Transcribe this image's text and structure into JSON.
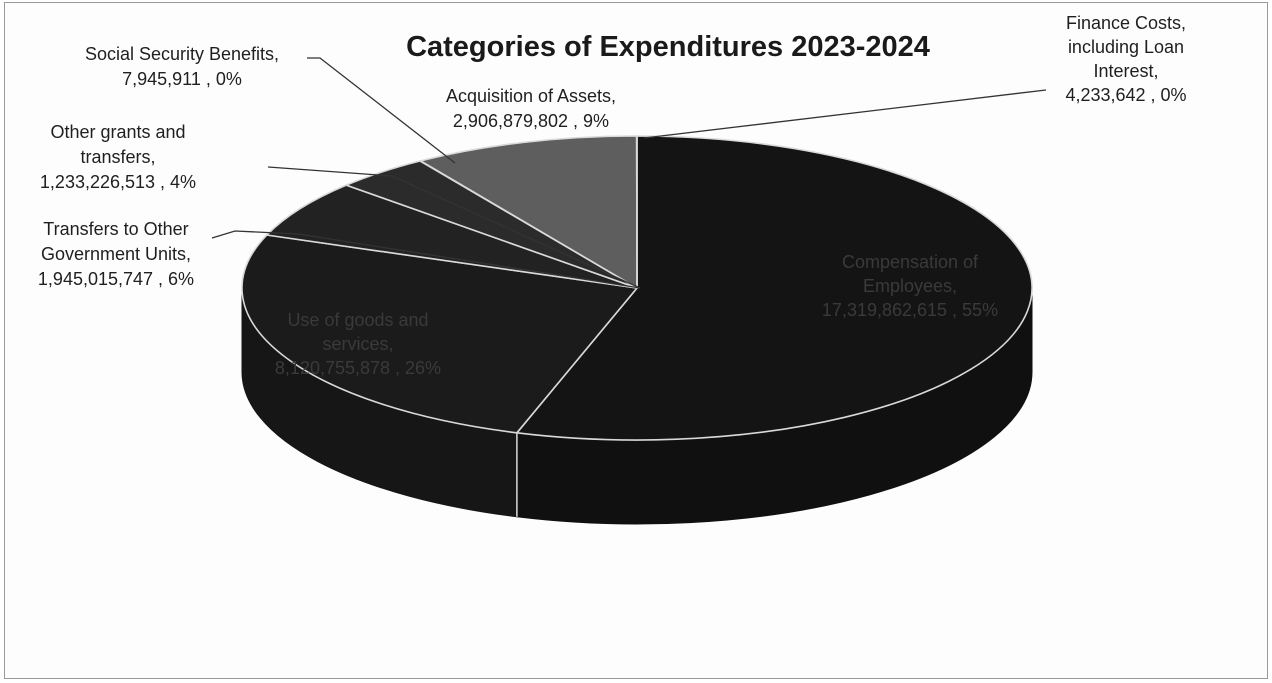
{
  "chart_data": {
    "type": "pie",
    "title": "Categories of Expenditures  2023-2024",
    "slices": [
      {
        "label_lines": [
          "Compensation of",
          "Employees,",
          "17,319,862,615 , 55%"
        ],
        "value": 17319862615,
        "percent": "55%",
        "color": "#141414"
      },
      {
        "label_lines": [
          "Use of goods and",
          "services,",
          "8,120,755,878 , 26%"
        ],
        "value": 8120755878,
        "percent": "26%",
        "color": "#1b1b1b"
      },
      {
        "label_lines": [
          "Transfers to Other",
          "Government Units,",
          "1,945,015,747 , 6%"
        ],
        "value": 1945015747,
        "percent": "6%",
        "color": "#222222"
      },
      {
        "label_lines": [
          "Other grants and",
          "transfers,",
          "1,233,226,513 , 4%"
        ],
        "value": 1233226513,
        "percent": "4%",
        "color": "#2b2b2b"
      },
      {
        "label_lines": [
          "Social Security Benefits,",
          "7,945,911 , 0%"
        ],
        "value": 7945911,
        "percent": "0%",
        "color": "#555555"
      },
      {
        "label_lines": [
          "Acquisition of Assets,",
          "2,906,879,802 , 9%"
        ],
        "value": 2906879802,
        "percent": "9%",
        "color": "#5e5e5e"
      },
      {
        "label_lines": [
          "Finance Costs,",
          "including Loan",
          "Interest,",
          "4,233,642 , 0%"
        ],
        "value": 4233642,
        "percent": "0%",
        "color": "#6a6a6a"
      }
    ]
  }
}
